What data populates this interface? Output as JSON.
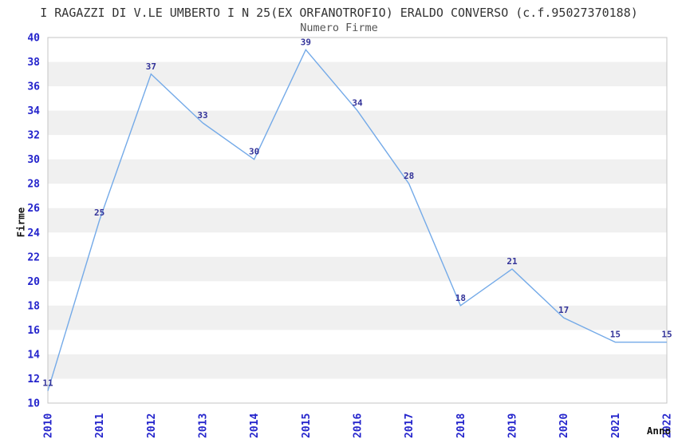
{
  "title": "I RAGAZZI DI V.LE UMBERTO I N 25(EX ORFANOTROFIO) ERALDO CONVERSO (c.f.95027370188)",
  "subtitle": "Numero Firme",
  "chart_data": {
    "type": "line",
    "x": [
      "2010",
      "2011",
      "2012",
      "2013",
      "2014",
      "2015",
      "2016",
      "2017",
      "2018",
      "2019",
      "2020",
      "2021",
      "2022"
    ],
    "values": [
      11,
      25,
      37,
      33,
      30,
      39,
      34,
      28,
      18,
      21,
      17,
      15,
      15
    ],
    "series_name": "Numero Firme",
    "title": "I RAGAZZI DI V.LE UMBERTO I N 25(EX ORFANOTROFIO) ERALDO CONVERSO (c.f.95027370188)",
    "xlabel": "Anno",
    "ylabel": "Firme",
    "ylim": [
      10,
      40
    ],
    "ytick_step": 2,
    "grid": "alternating horizontal gray bands every 2 units",
    "legend": "none",
    "data_labels_shown": true
  },
  "colors": {
    "line": "#74aae8",
    "band": "#f0f0f0",
    "plot_border": "#c4c4c4",
    "tick_label": "#2424cc",
    "data_label": "#333399",
    "title": "#333333",
    "subtitle": "#555555",
    "axis_label": "#111111"
  }
}
